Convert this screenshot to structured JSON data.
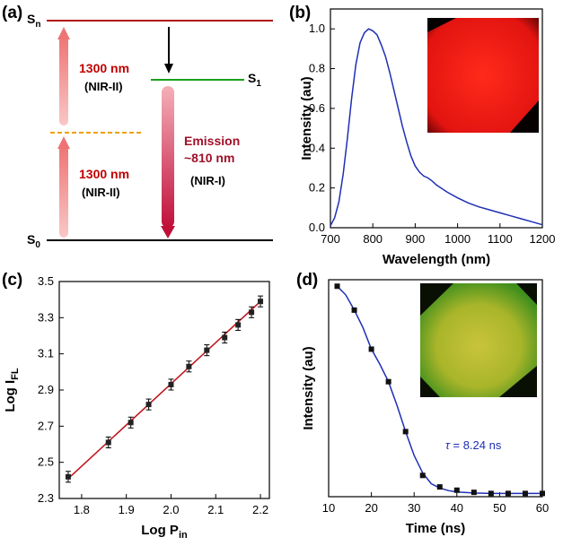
{
  "panels": {
    "a": {
      "label": "(a)",
      "state_sn": "S",
      "state_sn_sub": "n",
      "state_s1": "S",
      "state_s1_sub": "1",
      "state_s0": "S",
      "state_s0_sub": "0",
      "upper_excitation": "1300 nm",
      "upper_band": "(NIR-II)",
      "lower_excitation": "1300 nm",
      "lower_band": "(NIR-II)",
      "emission_line1": "Emission",
      "emission_line2": "~810 nm",
      "emission_band": "(NIR-I)",
      "colors": {
        "sn_level": "#b01010",
        "s1_level": "#1aa01a",
        "virtual_level": "#f0a000",
        "excitation_arrow": "#f08080",
        "emission_arrow": "#c0103a"
      }
    },
    "b": {
      "label": "(b)"
    },
    "c": {
      "label": "(c)"
    },
    "d": {
      "label": "(d)",
      "annotation_symbol": "τ",
      "annotation_value": " = 8.24 ns"
    }
  },
  "chart_data": [
    {
      "panel": "b",
      "type": "line",
      "xlabel": "Wavelength (nm)",
      "ylabel": "Intensity (au)",
      "xlim": [
        700,
        1200
      ],
      "ylim": [
        0.0,
        1.1
      ],
      "x_ticks": [
        "700",
        "800",
        "900",
        "1000",
        "1100",
        "1200"
      ],
      "y_ticks": [
        "0.0",
        "0.2",
        "0.4",
        "0.6",
        "0.8",
        "1.0"
      ],
      "line_color": "#1f2fb5",
      "inset_image": "red fluorescence micrograph",
      "series": [
        {
          "x": [
            700,
            710,
            720,
            730,
            740,
            750,
            760,
            770,
            780,
            790,
            800,
            810,
            820,
            830,
            840,
            850,
            860,
            870,
            880,
            890,
            900,
            910,
            920,
            930,
            940,
            950,
            975,
            1000,
            1025,
            1050,
            1075,
            1100,
            1125,
            1150,
            1175,
            1200
          ],
          "y": [
            0.01,
            0.05,
            0.13,
            0.27,
            0.45,
            0.65,
            0.82,
            0.93,
            0.98,
            1.0,
            0.99,
            0.97,
            0.92,
            0.86,
            0.78,
            0.69,
            0.6,
            0.51,
            0.43,
            0.36,
            0.31,
            0.28,
            0.26,
            0.25,
            0.235,
            0.215,
            0.18,
            0.15,
            0.125,
            0.105,
            0.09,
            0.075,
            0.06,
            0.045,
            0.03,
            0.015
          ]
        }
      ]
    },
    {
      "panel": "c",
      "type": "scatter",
      "xlabel": "Log P",
      "xlabel_sub": "in",
      "ylabel": "Log I",
      "ylabel_sub": "FL",
      "xlim": [
        1.75,
        2.22
      ],
      "ylim": [
        2.3,
        3.5
      ],
      "x_ticks": [
        "1.8",
        "1.9",
        "2.0",
        "2.1",
        "2.2"
      ],
      "y_ticks": [
        "2.3",
        "2.5",
        "2.7",
        "2.9",
        "3.1",
        "3.3",
        "3.5"
      ],
      "point_color": "#222222",
      "fit_color": "#c0101a",
      "series": [
        {
          "x": [
            1.77,
            1.86,
            1.91,
            1.95,
            2.0,
            2.04,
            2.08,
            2.12,
            2.15,
            2.18,
            2.2
          ],
          "y": [
            2.42,
            2.61,
            2.72,
            2.82,
            2.93,
            3.03,
            3.12,
            3.19,
            3.26,
            3.33,
            3.39
          ],
          "yerr": [
            0.03,
            0.03,
            0.03,
            0.03,
            0.03,
            0.03,
            0.03,
            0.03,
            0.03,
            0.03,
            0.03
          ]
        }
      ],
      "fit": {
        "x": [
          1.77,
          2.2
        ],
        "y": [
          2.41,
          3.39
        ]
      }
    },
    {
      "panel": "d",
      "type": "scatter",
      "xlabel": "Time (ns)",
      "ylabel": "Intensity (au)",
      "xlim": [
        10,
        60
      ],
      "ylim": [
        0,
        1
      ],
      "x_ticks": [
        "10",
        "20",
        "30",
        "40",
        "50",
        "60"
      ],
      "point_color": "#111111",
      "line_color": "#1f2fb5",
      "inset_image": "green-yellow fluorescence micrograph",
      "series": [
        {
          "x": [
            12,
            16,
            20,
            24,
            28,
            32,
            36,
            40,
            44,
            48,
            52,
            56,
            60
          ],
          "y": [
            0.97,
            0.86,
            0.68,
            0.53,
            0.3,
            0.098,
            0.045,
            0.03,
            0.02,
            0.015,
            0.015,
            0.015,
            0.015
          ]
        }
      ],
      "fit": {
        "x": [
          12,
          14,
          16,
          18,
          20,
          22,
          24,
          26,
          28,
          30,
          32,
          34,
          36,
          38,
          40,
          44,
          48,
          52,
          56,
          60
        ],
        "y": [
          0.97,
          0.93,
          0.86,
          0.78,
          0.68,
          0.61,
          0.53,
          0.42,
          0.3,
          0.19,
          0.11,
          0.06,
          0.04,
          0.028,
          0.022,
          0.017,
          0.015,
          0.015,
          0.015,
          0.015
        ]
      }
    }
  ]
}
